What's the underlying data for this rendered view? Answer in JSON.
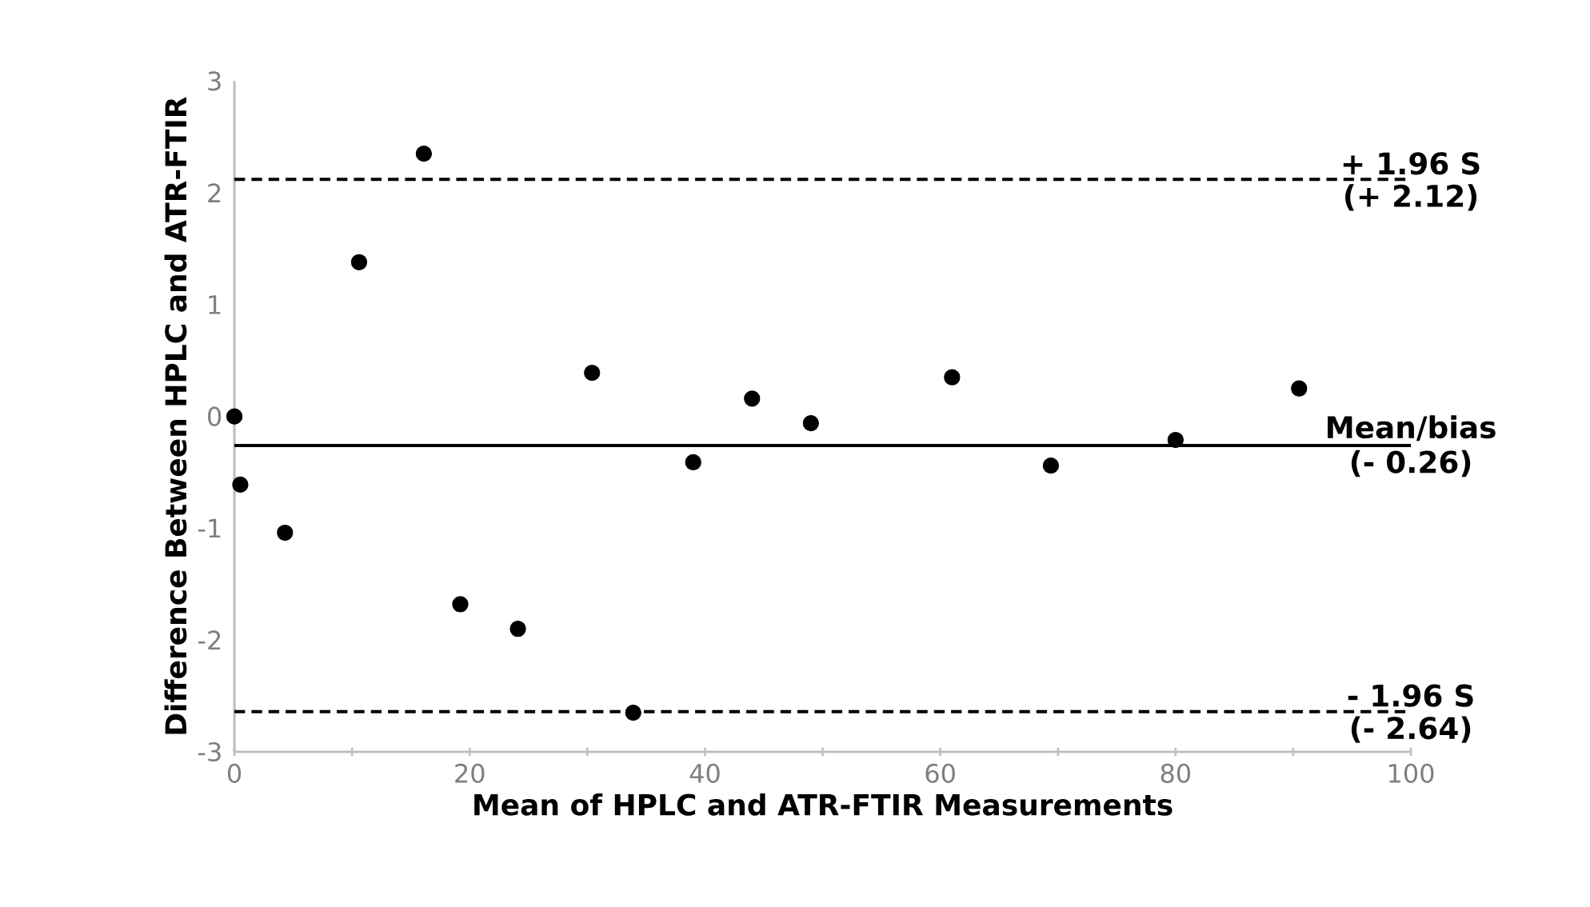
{
  "chart_data": {
    "type": "scatter",
    "xlabel": "Mean of HPLC and ATR-FTIR Measurements",
    "ylabel": "Difference Between HPLC and ATR-FTIR",
    "x": [
      0,
      0.5,
      4.3,
      10.6,
      16.1,
      19.2,
      24.1,
      30.4,
      33.9,
      39,
      44,
      49,
      61,
      69.4,
      80,
      90.5
    ],
    "values": [
      0,
      -0.61,
      -1.04,
      1.38,
      2.35,
      -1.68,
      -1.9,
      0.39,
      -2.65,
      -0.41,
      0.16,
      -0.06,
      0.35,
      -0.44,
      -0.21,
      0.25
    ],
    "color": "#000000",
    "marker": "circle",
    "xlim": [
      0,
      100
    ],
    "xticks": [
      0,
      {
        "value": 10,
        "label": null
      },
      20,
      {
        "value": 30,
        "label": null
      },
      40,
      {
        "value": 50,
        "label": null
      },
      60,
      {
        "value": 70,
        "label": null
      },
      80,
      {
        "value": 90,
        "label": null
      },
      100
    ],
    "ylim": [
      -3,
      3
    ],
    "yticks": [
      -3,
      -2,
      -1,
      0,
      1,
      2,
      3
    ],
    "grid": false,
    "ref_lines": [
      {
        "axis": "y",
        "value": 2.12,
        "label": "+ 1.96 S",
        "line_style": "dashed",
        "color": "#000000"
      },
      {
        "axis": "y",
        "value": -0.26,
        "label": "Mean/bias",
        "line_style": "solid",
        "color": "#000000"
      },
      {
        "axis": "y",
        "value": -2.64,
        "label": "- 1.96 S",
        "line_style": "dashed",
        "color": "#000000"
      }
    ],
    "annotations": [
      "(+ 2.12)",
      "(- 0.26)",
      "(- 2.64)"
    ]
  }
}
